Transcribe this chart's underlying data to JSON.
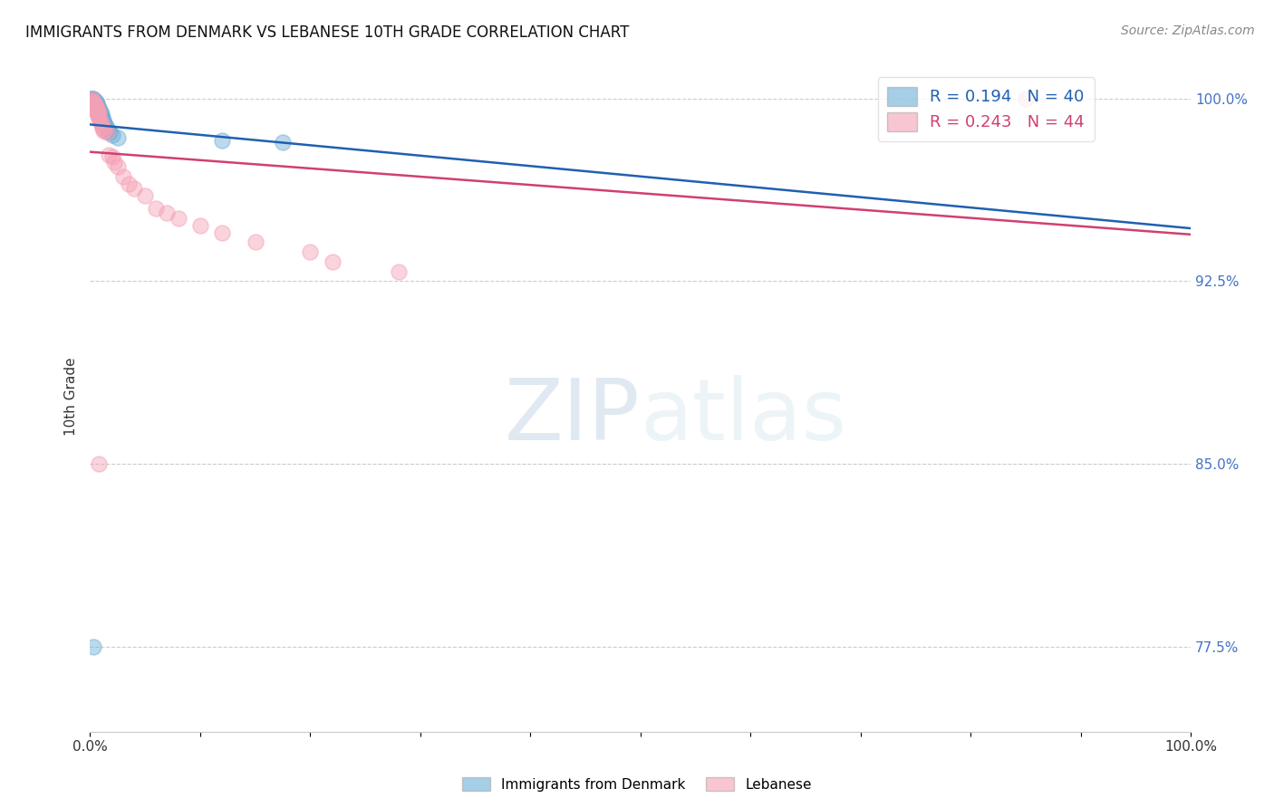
{
  "title": "IMMIGRANTS FROM DENMARK VS LEBANESE 10TH GRADE CORRELATION CHART",
  "source": "Source: ZipAtlas.com",
  "ylabel": "10th Grade",
  "xlim": [
    0.0,
    1.0
  ],
  "ylim": [
    0.74,
    1.015
  ],
  "denmark_R": 0.194,
  "denmark_N": 40,
  "lebanese_R": 0.243,
  "lebanese_N": 44,
  "denmark_color": "#6baed6",
  "lebanese_color": "#f4a0b5",
  "denmark_line_color": "#2060b0",
  "lebanese_line_color": "#d04070",
  "background_color": "#ffffff",
  "grid_color": "#cccccc",
  "right_tick_color": "#4472c4",
  "yticks": [
    0.775,
    0.85,
    0.925,
    1.0
  ],
  "yticklabels": [
    "77.5%",
    "85.0%",
    "92.5%",
    "100.0%"
  ],
  "xticks": [
    0.0,
    0.1,
    0.2,
    0.3,
    0.4,
    0.5,
    0.6,
    0.7,
    0.8,
    0.9,
    1.0
  ],
  "denmark_x": [
    0.001,
    0.001,
    0.001,
    0.002,
    0.002,
    0.002,
    0.003,
    0.003,
    0.003,
    0.003,
    0.004,
    0.004,
    0.004,
    0.004,
    0.005,
    0.005,
    0.005,
    0.006,
    0.006,
    0.006,
    0.007,
    0.007,
    0.008,
    0.008,
    0.009,
    0.009,
    0.01,
    0.01,
    0.011,
    0.012,
    0.013,
    0.014,
    0.015,
    0.016,
    0.018,
    0.02,
    0.025,
    0.12,
    0.175,
    0.003
  ],
  "denmark_y": [
    1.0,
    0.999,
    1.0,
    0.999,
    1.0,
    0.998,
    0.999,
    0.998,
    0.997,
    1.0,
    0.999,
    0.998,
    0.997,
    0.996,
    0.999,
    0.997,
    0.996,
    0.998,
    0.996,
    0.995,
    0.997,
    0.995,
    0.996,
    0.994,
    0.995,
    0.993,
    0.994,
    0.993,
    0.992,
    0.991,
    0.99,
    0.989,
    0.988,
    0.987,
    0.986,
    0.985,
    0.984,
    0.983,
    0.982,
    0.775
  ],
  "lebanese_x": [
    0.001,
    0.001,
    0.002,
    0.002,
    0.003,
    0.003,
    0.003,
    0.004,
    0.004,
    0.005,
    0.005,
    0.005,
    0.006,
    0.006,
    0.007,
    0.007,
    0.008,
    0.008,
    0.009,
    0.01,
    0.01,
    0.011,
    0.012,
    0.013,
    0.015,
    0.017,
    0.02,
    0.022,
    0.025,
    0.03,
    0.035,
    0.04,
    0.05,
    0.06,
    0.07,
    0.08,
    0.1,
    0.12,
    0.15,
    0.2,
    0.22,
    0.28,
    0.85,
    0.008
  ],
  "lebanese_y": [
    1.0,
    0.999,
    0.999,
    0.998,
    0.999,
    0.998,
    0.997,
    0.998,
    0.996,
    0.997,
    0.996,
    0.995,
    0.996,
    0.994,
    0.995,
    0.993,
    0.994,
    0.992,
    0.991,
    0.99,
    0.989,
    0.988,
    0.987,
    0.987,
    0.986,
    0.977,
    0.976,
    0.974,
    0.972,
    0.968,
    0.965,
    0.963,
    0.96,
    0.955,
    0.953,
    0.951,
    0.948,
    0.945,
    0.941,
    0.937,
    0.933,
    0.929,
    1.0,
    0.85
  ],
  "trendline_x_start": 0.0,
  "trendline_x_end": 1.0
}
